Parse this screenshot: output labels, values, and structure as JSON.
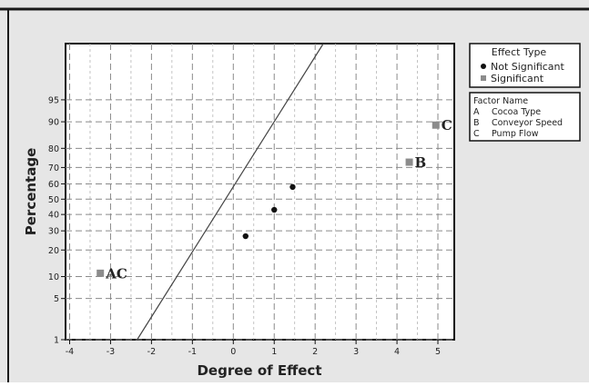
{
  "chart_data": {
    "type": "scatter",
    "title": "",
    "xlabel": "Degree of Effect",
    "ylabel": "Percentage",
    "x_ticks": [
      -4,
      -3,
      -2,
      -1,
      0,
      1,
      2,
      3,
      4,
      5
    ],
    "y_ticks": [
      1,
      5,
      10,
      20,
      30,
      40,
      50,
      60,
      70,
      80,
      90,
      95
    ],
    "y_scale": "normal-probability",
    "xlim": [
      -4.1,
      5.4
    ],
    "ylim": [
      1,
      99.5
    ],
    "grid": true,
    "legend_position": "top-right, outside plot",
    "colors": {
      "background": "#e6e6e6",
      "plot_area": "#ffffff",
      "not_significant": "#111111",
      "significant": "#8c8c8c",
      "frame": "#1a1a1a"
    },
    "series": [
      {
        "name": "Not Significant",
        "marker": "circle",
        "points": [
          {
            "x": 0.3,
            "y": 27
          },
          {
            "x": 1.0,
            "y": 43
          },
          {
            "x": 1.45,
            "y": 58
          }
        ]
      },
      {
        "name": "Significant",
        "marker": "square",
        "points": [
          {
            "x": -3.25,
            "y": 11,
            "label": "AC"
          },
          {
            "x": 4.3,
            "y": 73,
            "label": "B"
          },
          {
            "x": 4.95,
            "y": 89,
            "label": "C"
          }
        ]
      }
    ],
    "reference_line": {
      "from": {
        "x": -2.35,
        "y": 1
      },
      "to": {
        "x": 2.2,
        "y": 99.5
      }
    },
    "legend": {
      "title": "Effect Type",
      "entries": [
        {
          "label": "Not Significant",
          "marker": "circle"
        },
        {
          "label": "Significant",
          "marker": "square"
        }
      ]
    },
    "factor_legend": {
      "title": "Factor Name",
      "rows": [
        {
          "letter": "A",
          "name": "Cocoa Type"
        },
        {
          "letter": "B",
          "name": "Conveyor Speed"
        },
        {
          "letter": "C",
          "name": "Pump Flow"
        }
      ]
    }
  }
}
